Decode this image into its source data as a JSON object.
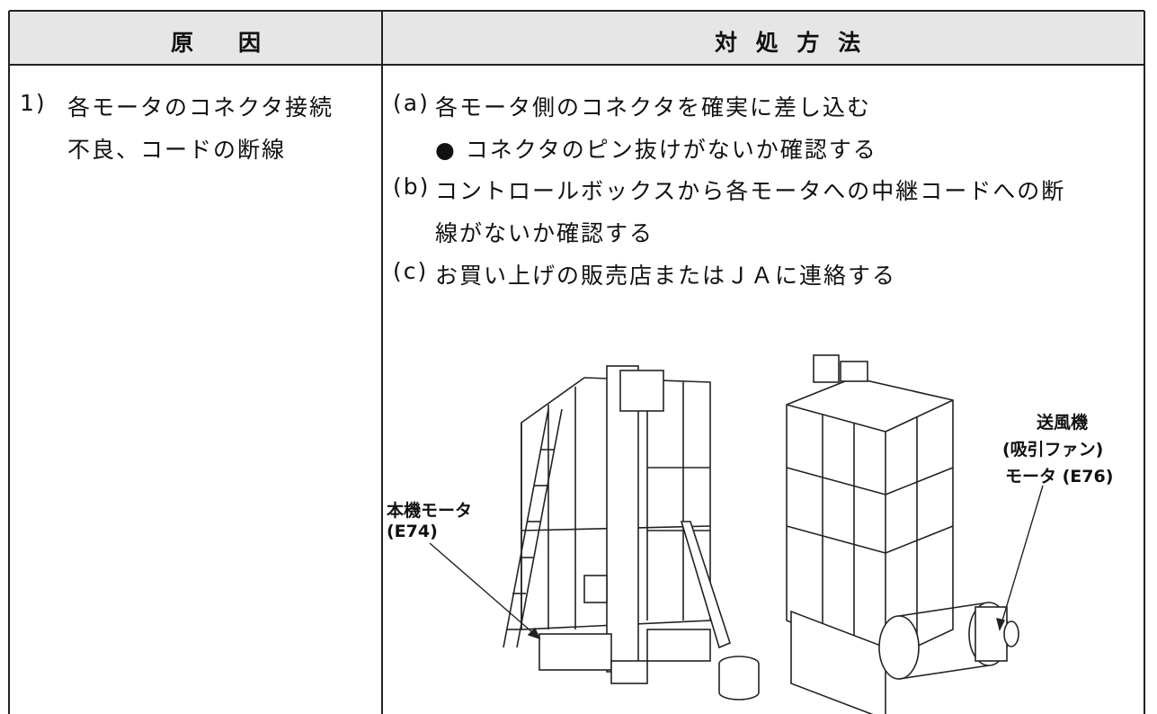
{
  "table": {
    "header": {
      "cause": "原　　因",
      "remedy": "対 処 方 法"
    },
    "rows": [
      {
        "number": "1)",
        "cause_lines": [
          "各モータのコネクタ接続",
          "不良、コードの断線"
        ],
        "remedies": [
          {
            "label": "(a)",
            "lines": [
              "各モータ側のコネクタを確実に差し込む"
            ]
          },
          {
            "label": "",
            "lines": [
              "● コネクタのピン抜けがないか確認する"
            ]
          },
          {
            "label": "(b)",
            "lines": [
              "コントロールボックスから各モータへの中継コードへの断",
              "線がないか確認する"
            ]
          },
          {
            "label": "(c)",
            "lines": [
              "お買い上げの販売店またはＪＡに連絡する"
            ]
          }
        ]
      }
    ]
  },
  "figure": {
    "left_label": [
      "本機モータ",
      "(E74)"
    ],
    "right_label": [
      "送風機",
      "(吸引ファン)",
      "モータ (E76)"
    ]
  }
}
